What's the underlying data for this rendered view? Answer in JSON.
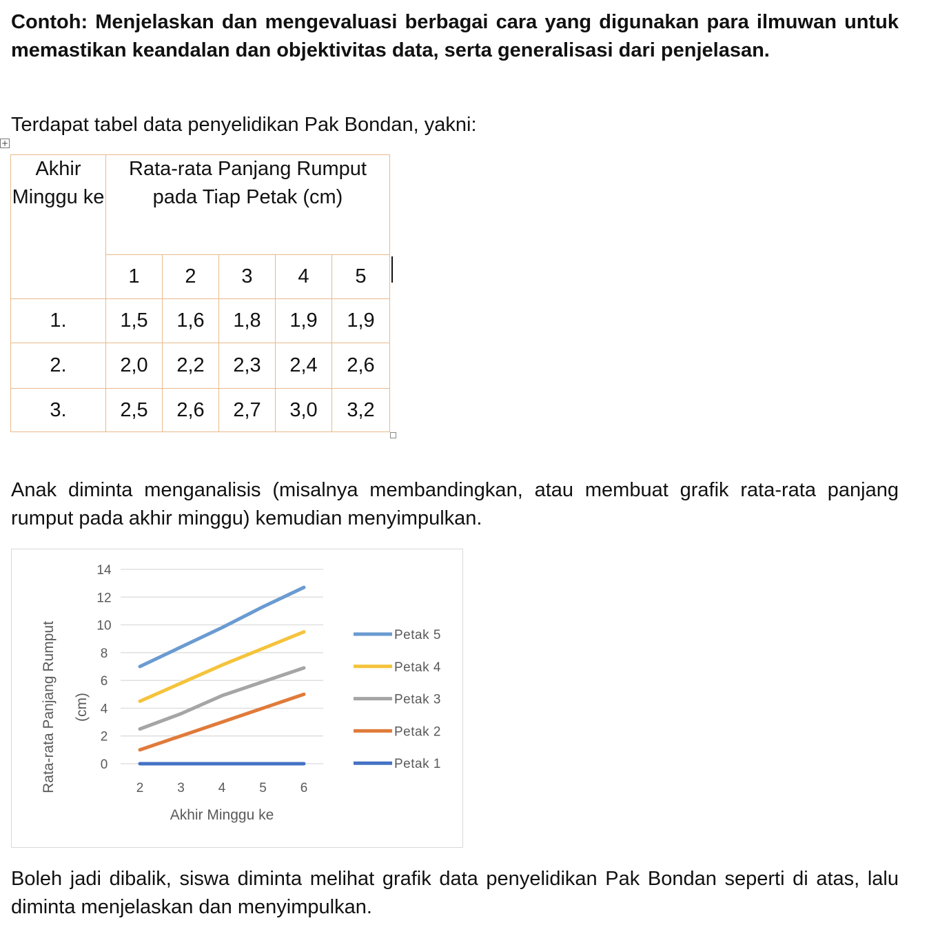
{
  "heading": "Contoh: Menjelaskan dan mengevaluasi berbagai cara yang digunakan para ilmuwan untuk memastikan keandalan dan objektivitas data, serta generalisasi dari penjelasan.",
  "intro": "Terdapat tabel data penyelidikan Pak Bondan, yakni:",
  "table": {
    "col_header_week": "Akhir Minggu ke",
    "col_header_avg": "Rata-rata Panjang Rumput pada Tiap Petak (cm)",
    "plots": [
      "1",
      "2",
      "3",
      "4",
      "5"
    ],
    "rows": [
      {
        "week": "1.",
        "values": [
          "1,5",
          "1,6",
          "1,8",
          "1,9",
          "1,9"
        ]
      },
      {
        "week": "2.",
        "values": [
          "2,0",
          "2,2",
          "2,3",
          "2,4",
          "2,6"
        ]
      },
      {
        "week": "3.",
        "values": [
          "2,5",
          "2,6",
          "2,7",
          "3,0",
          "3,2"
        ]
      }
    ]
  },
  "instruction": "Anak diminta menganalisis (misalnya membandingkan, atau membuat grafik rata-rata panjang rumput pada akhir minggu) kemudian menyimpulkan.",
  "closing": "Boleh jadi dibalik, siswa diminta melihat grafik data penyelidikan Pak Bondan seperti di atas, lalu diminta menjelaskan dan menyimpulkan.",
  "chart_data": {
    "type": "line",
    "xlabel": "Akhir Minggu ke",
    "ylabel": "Rata-rata Panjang Rumput (cm)",
    "x": [
      2,
      3,
      4,
      5,
      6
    ],
    "ylim": [
      0,
      14
    ],
    "yticks": [
      0,
      2,
      4,
      6,
      8,
      10,
      12,
      14
    ],
    "grid": true,
    "legend_position": "right",
    "series": [
      {
        "name": "Petak 5",
        "color": "#6a9bd1",
        "values": [
          7.0,
          8.4,
          9.8,
          11.3,
          12.7
        ]
      },
      {
        "name": "Petak 4",
        "color": "#f5c33b",
        "values": [
          4.5,
          5.8,
          7.1,
          8.3,
          9.5
        ]
      },
      {
        "name": "Petak 3",
        "color": "#a5a5a5",
        "values": [
          2.5,
          3.6,
          4.9,
          5.9,
          6.9
        ]
      },
      {
        "name": "Petak 2",
        "color": "#e07b3a",
        "values": [
          1.0,
          2.0,
          3.0,
          4.0,
          5.0
        ]
      },
      {
        "name": "Petak 1",
        "color": "#4472c4",
        "values": [
          0,
          0,
          0,
          0,
          0
        ]
      }
    ]
  }
}
